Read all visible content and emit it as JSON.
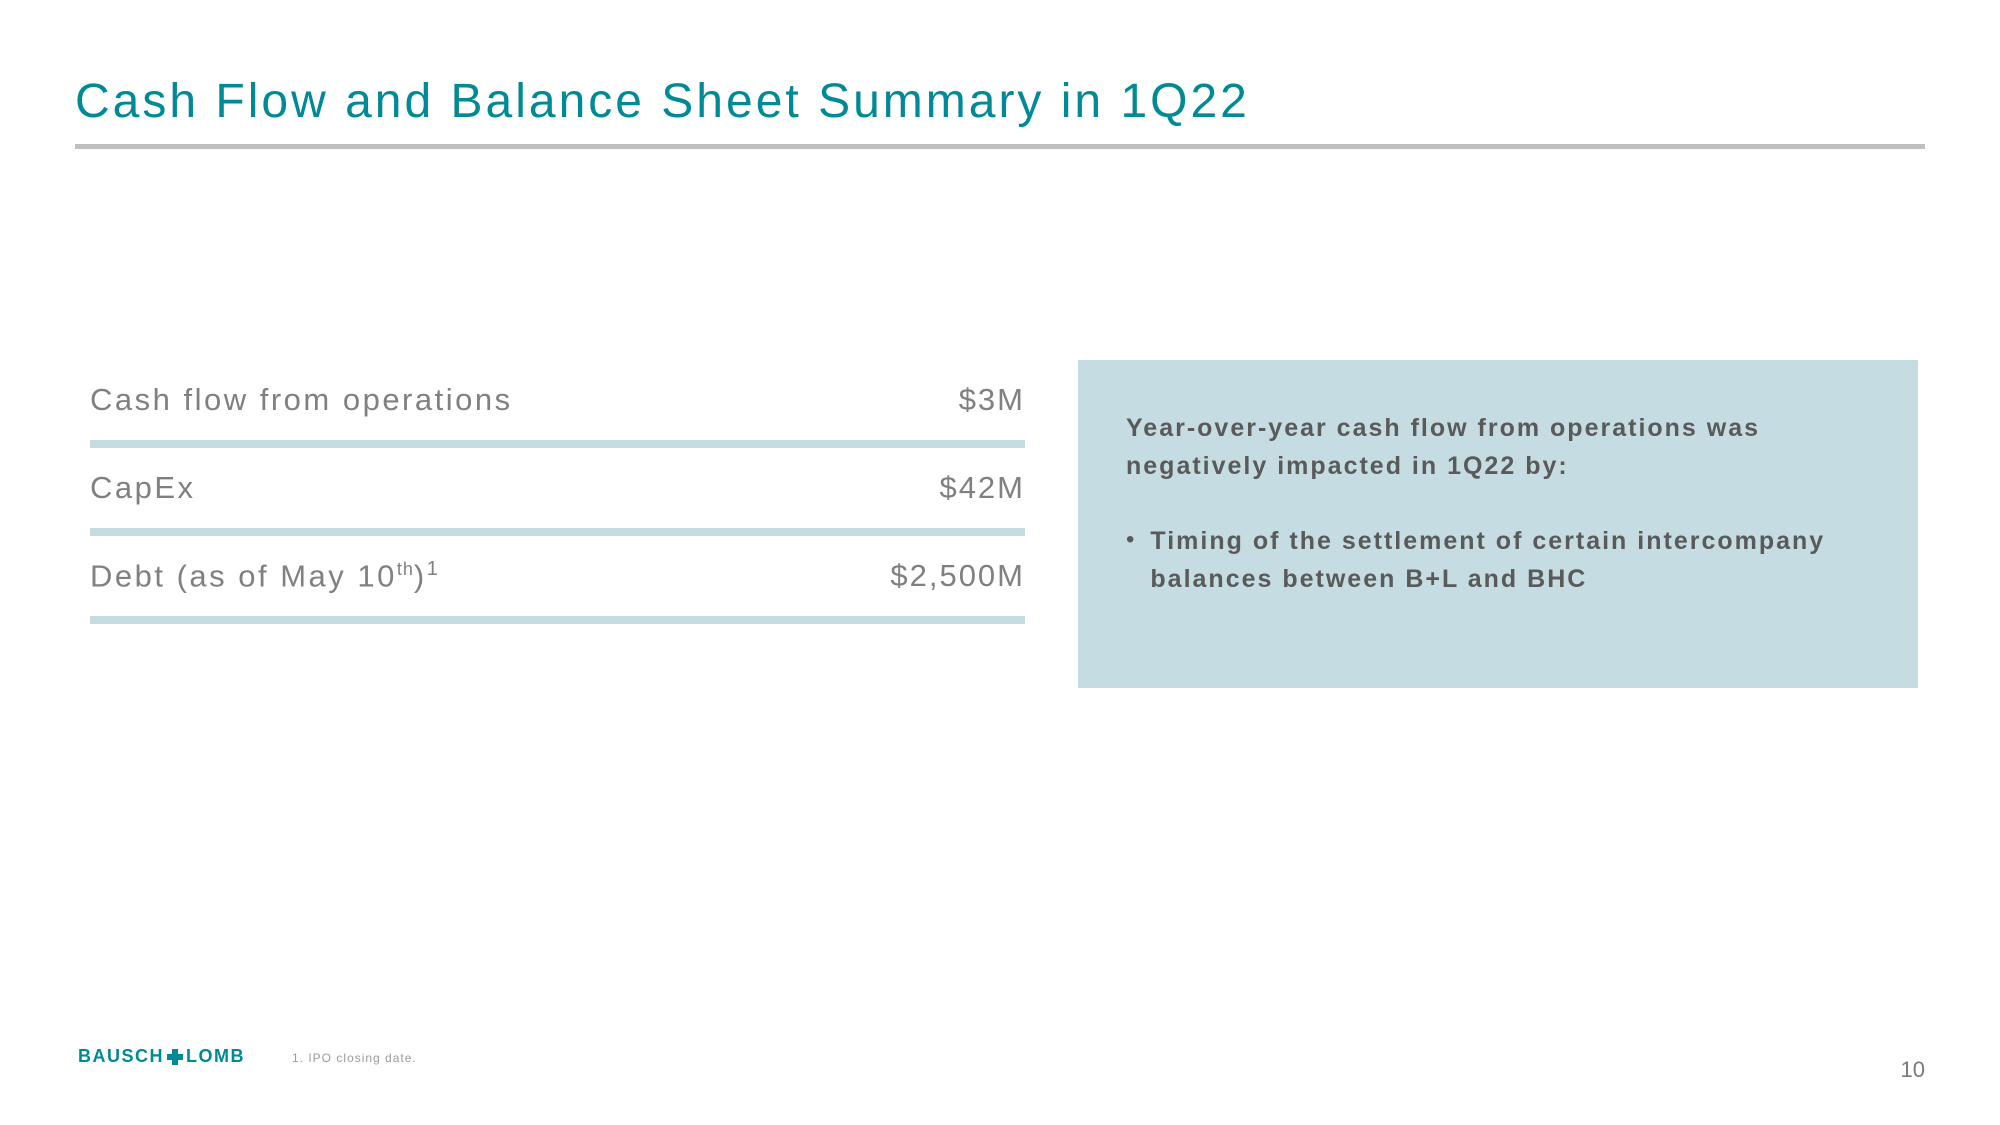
{
  "title": "Cash Flow and Balance Sheet Summary in 1Q22",
  "metrics": [
    {
      "label": "Cash flow from operations",
      "value": "$3M"
    },
    {
      "label": "CapEx",
      "value": "$42M"
    },
    {
      "label": "Debt (as of May 10",
      "label_sup": "th",
      "label_suffix": ")",
      "label_ref": "1",
      "value": "$2,500M"
    }
  ],
  "callout": {
    "heading": "Year-over-year cash flow from operations was negatively impacted in 1Q22 by:",
    "bullets": [
      "Timing of the settlement of certain intercompany balances between B+L and BHC"
    ]
  },
  "logo": {
    "left": "BAUSCH",
    "right": "LOMB"
  },
  "footnote": "1.   IPO closing date.",
  "page_number": "10",
  "colors": {
    "title": "#008996",
    "underline": "#bfbfbf",
    "metric_text": "#808080",
    "divider": "#c5dde2",
    "callout_bg": "#c5dde2",
    "callout_text": "#5a5a5a",
    "logo": "#008996",
    "footnote": "#9a9a9a",
    "page_num": "#7a7a7a"
  }
}
